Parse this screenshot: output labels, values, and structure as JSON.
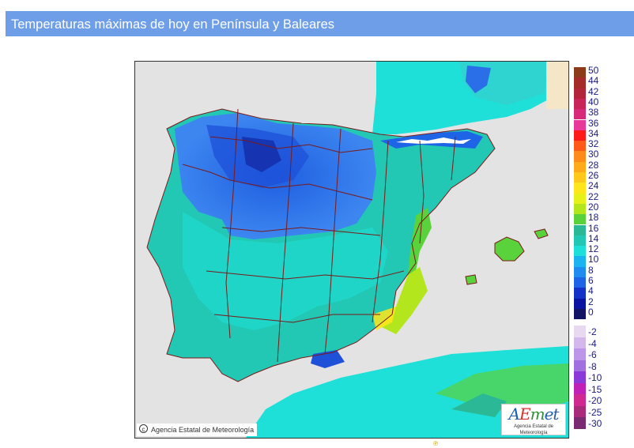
{
  "header": {
    "title": "Temperaturas máximas de hoy en Península y Baleares"
  },
  "map": {
    "credit": "Agencia Estatal de Meteorología",
    "credit_icon": "copyright-icon",
    "logo": {
      "a": "A",
      "e": "E",
      "m": "m",
      "t": "et",
      "subtitle": "Agencia Estatal de Meteorología"
    }
  },
  "legend": {
    "positive": [
      {
        "label": "50",
        "color": "#8b3a1a"
      },
      {
        "label": "44",
        "color": "#a52a2a"
      },
      {
        "label": "42",
        "color": "#b3233a"
      },
      {
        "label": "40",
        "color": "#c8245a"
      },
      {
        "label": "38",
        "color": "#d8287a"
      },
      {
        "label": "36",
        "color": "#e8389a"
      },
      {
        "label": "34",
        "color": "#ff1a1a"
      },
      {
        "label": "32",
        "color": "#ff5a1a"
      },
      {
        "label": "30",
        "color": "#ff8c1a"
      },
      {
        "label": "28",
        "color": "#ffaa1a"
      },
      {
        "label": "26",
        "color": "#ffc81a"
      },
      {
        "label": "24",
        "color": "#ffe61a"
      },
      {
        "label": "22",
        "color": "#e6f01a"
      },
      {
        "label": "20",
        "color": "#b4e61e"
      },
      {
        "label": "18",
        "color": "#5ad23c"
      },
      {
        "label": "16",
        "color": "#2ab896"
      },
      {
        "label": "14",
        "color": "#22c8b4"
      },
      {
        "label": "12",
        "color": "#1ee0d8"
      },
      {
        "label": "10",
        "color": "#1ab4f0"
      },
      {
        "label": "8",
        "color": "#1e8cf0"
      },
      {
        "label": "6",
        "color": "#1e64e6"
      },
      {
        "label": "4",
        "color": "#1432c8"
      },
      {
        "label": "2",
        "color": "#0a14a0"
      },
      {
        "label": "0",
        "color": "#141464"
      }
    ],
    "negative": [
      {
        "label": "-2",
        "color": "#e8d8f0"
      },
      {
        "label": "-4",
        "color": "#d4b8ec"
      },
      {
        "label": "-6",
        "color": "#bc96e8"
      },
      {
        "label": "-8",
        "color": "#a070e0"
      },
      {
        "label": "-10",
        "color": "#8a3ad8"
      },
      {
        "label": "-15",
        "color": "#c020b8"
      },
      {
        "label": "-20",
        "color": "#d02890"
      },
      {
        "label": "-25",
        "color": "#a82a78"
      },
      {
        "label": "-30",
        "color": "#7a2a70"
      }
    ]
  },
  "colors": {
    "sea": "#e3e3e3",
    "land_foreign": "#cfcfcf",
    "france_strip": "#f5e6c8",
    "header_bg": "#6e9ee8",
    "border": "#7a1a1a"
  },
  "stray_mark": "℗"
}
